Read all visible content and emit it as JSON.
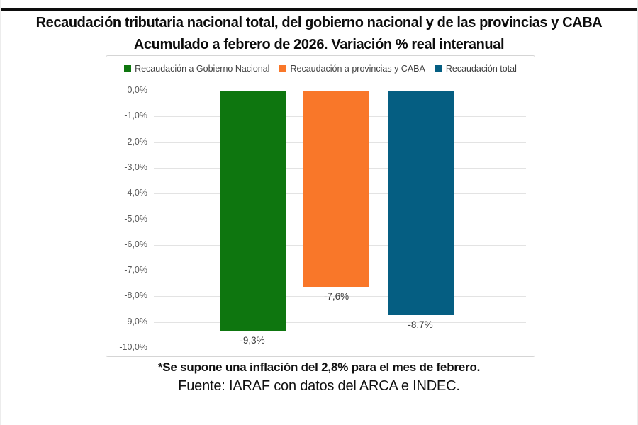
{
  "page": {
    "title_line1": "Recaudación tributaria nacional total, del gobierno nacional y de las provincias y CABA",
    "title_line2": "Acumulado a febrero de 2026. Variación % real interanual",
    "footnote": "*Se supone una inflación del 2,8% para el mes de febrero.",
    "source": "Fuente: IARAF con datos del ARCA e INDEC."
  },
  "chart_data": {
    "type": "bar",
    "title": "Recaudación tributaria nacional total, del gobierno nacional y de las provincias y CABA. Acumulado a febrero de 2026. Variación % real interanual",
    "categories": [
      "Recaudación a Gobierno Nacional",
      "Recaudación a provincias y CABA",
      "Recaudación total"
    ],
    "values": [
      -9.3,
      -7.6,
      -8.7
    ],
    "data_labels": [
      "-9,3%",
      "-7,6%",
      "-8,7%"
    ],
    "legend": [
      {
        "label": "Recaudación a Gobierno Nacional",
        "color": "#0e760f"
      },
      {
        "label": "Recaudación a provincias y CABA",
        "color": "#f97729"
      },
      {
        "label": "Recaudación total",
        "color": "#055e82"
      }
    ],
    "xlabel": "",
    "ylabel": "",
    "ylim": [
      -10,
      0
    ],
    "ytick_values": [
      0,
      -1,
      -2,
      -3,
      -4,
      -5,
      -6,
      -7,
      -8,
      -9,
      -10
    ],
    "ytick_labels": [
      "0,0%",
      "-1,0%",
      "-2,0%",
      "-3,0%",
      "-4,0%",
      "-5,0%",
      "-6,0%",
      "-7,0%",
      "-8,0%",
      "-9,0%",
      "-10,0%"
    ],
    "grid": true,
    "legend_position": "top"
  }
}
